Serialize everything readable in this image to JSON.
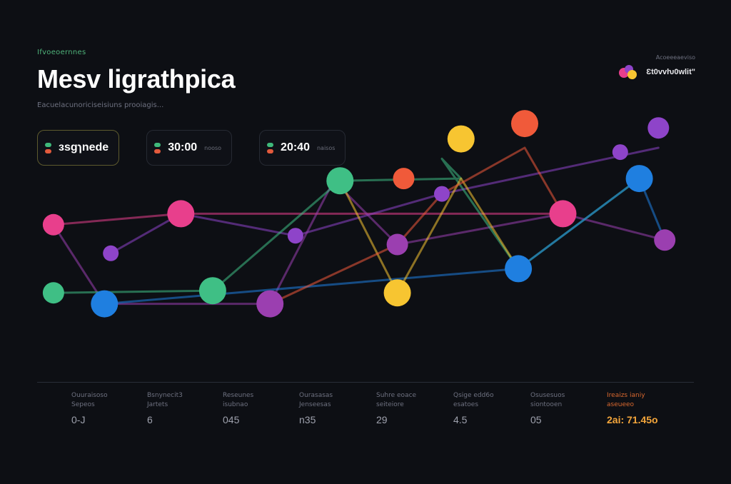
{
  "header": {
    "eyebrow": "Ifvoeoernnes",
    "title": "Mesv ligrathpica",
    "subtitle": "Eacuelacunoriciseisiuns prooiagis..."
  },
  "chips": [
    {
      "value": "ɜsgɿnede",
      "note": "",
      "active": true
    },
    {
      "value": "30:00",
      "note": "nooso",
      "active": false
    },
    {
      "value": "20:40",
      "note": "naisos",
      "active": false
    }
  ],
  "chip_colors": {
    "top": "#3fb97a",
    "bottom": "#e25a3c"
  },
  "legend": {
    "caption": "Acoeeeaeviso",
    "label": "Ɛt0vvƕ0wlit\"",
    "colors": [
      "#e83f8c",
      "#8e44c9",
      "#f7c531"
    ]
  },
  "chart_data": {
    "type": "line",
    "xlim": [
      0,
      10
    ],
    "ylim": [
      0,
      100
    ],
    "series": [
      {
        "color": "#e83f8c",
        "points": [
          [
            0.1,
            53
          ],
          [
            2.1,
            58
          ],
          [
            8.1,
            58
          ]
        ]
      },
      {
        "color": "#8e44c9",
        "points": [
          [
            1.0,
            40
          ],
          [
            2.1,
            58
          ],
          [
            3.9,
            48
          ],
          [
            6.2,
            67
          ],
          [
            9.6,
            88
          ]
        ]
      },
      {
        "color": "#9b3fb0",
        "points": [
          [
            0.1,
            53
          ],
          [
            0.9,
            17
          ],
          [
            3.5,
            17
          ],
          [
            4.5,
            73
          ],
          [
            5.5,
            44
          ],
          [
            8.1,
            58
          ],
          [
            9.7,
            46
          ]
        ]
      },
      {
        "color": "#3fbf85",
        "points": [
          [
            0.1,
            22
          ],
          [
            2.6,
            23
          ],
          [
            4.6,
            73
          ],
          [
            6.5,
            74
          ],
          [
            6.2,
            83
          ],
          [
            7.4,
            33
          ],
          [
            9.3,
            74
          ]
        ]
      },
      {
        "color": "#1f7fe0",
        "points": [
          [
            0.9,
            17
          ],
          [
            7.4,
            33
          ],
          [
            9.3,
            74
          ],
          [
            9.7,
            46
          ]
        ]
      },
      {
        "color": "#f7c531",
        "points": [
          [
            4.6,
            73
          ],
          [
            5.5,
            22
          ],
          [
            6.5,
            74
          ],
          [
            7.4,
            33
          ]
        ]
      },
      {
        "color": "#f05a3a",
        "points": [
          [
            3.5,
            17
          ],
          [
            5.5,
            44
          ],
          [
            6.2,
            67
          ],
          [
            7.5,
            88
          ],
          [
            8.1,
            58
          ]
        ]
      }
    ],
    "markers": [
      {
        "x": 0.1,
        "y": 53,
        "color": "#e83f8c",
        "size": "m"
      },
      {
        "x": 1.0,
        "y": 40,
        "color": "#8e44c9",
        "size": "s"
      },
      {
        "x": 0.1,
        "y": 22,
        "color": "#3fbf85",
        "size": "m"
      },
      {
        "x": 0.9,
        "y": 17,
        "color": "#1f7fe0",
        "size": "l"
      },
      {
        "x": 2.1,
        "y": 58,
        "color": "#e83f8c",
        "size": "l"
      },
      {
        "x": 2.6,
        "y": 23,
        "color": "#3fbf85",
        "size": "l"
      },
      {
        "x": 3.5,
        "y": 17,
        "color": "#9b3fb0",
        "size": "l"
      },
      {
        "x": 3.9,
        "y": 48,
        "color": "#8e44c9",
        "size": "s"
      },
      {
        "x": 4.6,
        "y": 73,
        "color": "#3fbf85",
        "size": "l"
      },
      {
        "x": 5.5,
        "y": 22,
        "color": "#f7c531",
        "size": "l"
      },
      {
        "x": 5.5,
        "y": 44,
        "color": "#9b3fb0",
        "size": "m"
      },
      {
        "x": 5.6,
        "y": 74,
        "color": "#f05a3a",
        "size": "m"
      },
      {
        "x": 6.2,
        "y": 67,
        "color": "#8e44c9",
        "size": "s"
      },
      {
        "x": 6.5,
        "y": 92,
        "color": "#f7c531",
        "size": "l"
      },
      {
        "x": 7.4,
        "y": 33,
        "color": "#1f7fe0",
        "size": "l"
      },
      {
        "x": 7.5,
        "y": 99,
        "color": "#f05a3a",
        "size": "l"
      },
      {
        "x": 8.1,
        "y": 58,
        "color": "#e83f8c",
        "size": "l"
      },
      {
        "x": 9.0,
        "y": 86,
        "color": "#8e44c9",
        "size": "s"
      },
      {
        "x": 9.3,
        "y": 74,
        "color": "#1f7fe0",
        "size": "l"
      },
      {
        "x": 9.6,
        "y": 97,
        "color": "#8e44c9",
        "size": "m"
      },
      {
        "x": 9.7,
        "y": 46,
        "color": "#9b3fb0",
        "size": "m"
      }
    ]
  },
  "stats": [
    {
      "label": "Ouuraisoso Sepeos",
      "value": "0-J",
      "accent": false
    },
    {
      "label": "Bsnynecit3 Jartets",
      "value": "6",
      "accent": false
    },
    {
      "label": "Reseunes isubnao",
      "value": "045",
      "accent": false
    },
    {
      "label": "Ourasasas Jenseesas",
      "value": "n35",
      "accent": false
    },
    {
      "label": "Suhre eoace seiteiore",
      "value": "29",
      "accent": false
    },
    {
      "label": "Qsige edd6o esatoes",
      "value": "4.5",
      "accent": false
    },
    {
      "label": "Osusesuos siontooen",
      "value": "05",
      "accent": false
    },
    {
      "label": "Ireaizs ianiy aseueeo",
      "value": "2ai: 71.45o",
      "accent": true
    }
  ]
}
